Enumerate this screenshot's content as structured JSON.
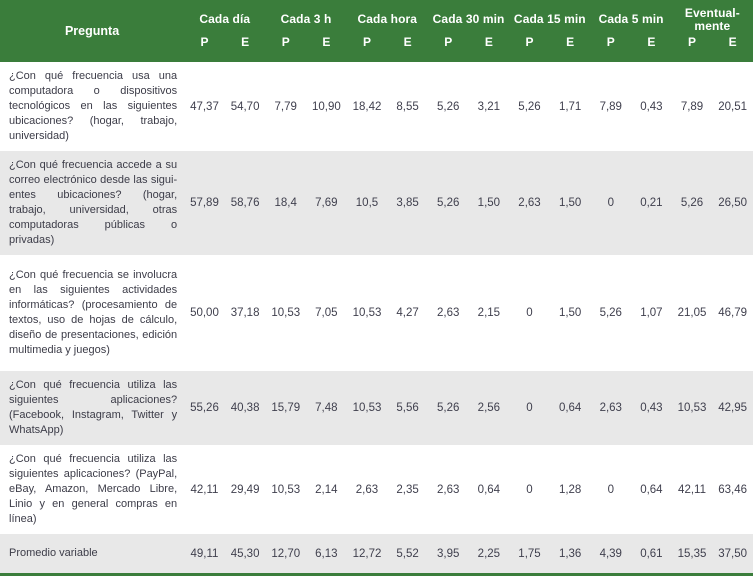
{
  "colors": {
    "header_green": "#3A7D3B",
    "stripe_gray": "#E8E8E8",
    "body_text": "#3F3F4D",
    "header_text": "#FFFFFF"
  },
  "table": {
    "question_header": "Pregunta",
    "groups": [
      {
        "label": "Cada día",
        "sub": [
          "P",
          "E"
        ]
      },
      {
        "label": "Cada 3 h",
        "sub": [
          "P",
          "E"
        ]
      },
      {
        "label": "Cada hora",
        "sub": [
          "P",
          "E"
        ]
      },
      {
        "label": "Cada 30 min",
        "sub": [
          "P",
          "E"
        ]
      },
      {
        "label": "Cada 15 min",
        "sub": [
          "P",
          "E"
        ]
      },
      {
        "label": "Cada 5 min",
        "sub": [
          "P",
          "E"
        ]
      },
      {
        "label": "Eventual-\nmente",
        "sub": [
          "P",
          "E"
        ]
      }
    ],
    "rows": [
      {
        "question": "¿Con qué frecuencia usa una com­putadora o dispositivos tecnológi­cos en las siguientes ubicaciones? (hogar, trabajo, universidad)",
        "values": [
          "47,37",
          "54,70",
          "7,79",
          "10,90",
          "18,42",
          "8,55",
          "5,26",
          "3,21",
          "5,26",
          "1,71",
          "7,89",
          "0,43",
          "7,89",
          "20,51"
        ]
      },
      {
        "question": "¿Con qué frecuencia accede a su correo electrónico desde las sigui­entes ubicaciones? (hogar, trabajo, universidad, otras computadoras públicas o privadas)",
        "values": [
          "57,89",
          "58,76",
          "18,4",
          "7,69",
          "10,5",
          "3,85",
          "5,26",
          "1,50",
          "2,63",
          "1,50",
          "0",
          "0,21",
          "5,26",
          "26,50"
        ]
      },
      {
        "question": "¿Con qué frecuencia se involu­cra en las siguientes actividades informáticas? (procesamiento de textos, uso de hojas de cálculo, diseño de presentaciones, edición multimedia y juegos)",
        "values": [
          "50,00",
          "37,18",
          "10,53",
          "7,05",
          "10,53",
          "4,27",
          "2,63",
          "2,15",
          "0",
          "1,50",
          "5,26",
          "1,07",
          "21,05",
          "46,79"
        ]
      },
      {
        "question": "¿Con qué frecuencia utiliza las siguientes aplicaciones? (Facebook, Instagram, Twitter y WhatsApp)",
        "values": [
          "55,26",
          "40,38",
          "15,79",
          "7,48",
          "10,53",
          "5,56",
          "5,26",
          "2,56",
          "0",
          "0,64",
          "2,63",
          "0,43",
          "10,53",
          "42,95"
        ]
      },
      {
        "question": "¿Con qué frecuencia utiliza las siguientes aplicaciones? (PayPal, eBay, Amazon, Mercado Libre, Lin­io y en general compras en línea)",
        "values": [
          "42,11",
          "29,49",
          "10,53",
          "2,14",
          "2,63",
          "2,35",
          "2,63",
          "0,64",
          "0",
          "1,28",
          "0",
          "0,64",
          "42,11",
          "63,46"
        ]
      },
      {
        "question": "Promedio variable",
        "values": [
          "49,11",
          "45,30",
          "12,70",
          "6,13",
          "12,72",
          "5,52",
          "3,95",
          "2,25",
          "1,75",
          "1,36",
          "4,39",
          "0,61",
          "15,35",
          "37,50"
        ]
      }
    ]
  }
}
